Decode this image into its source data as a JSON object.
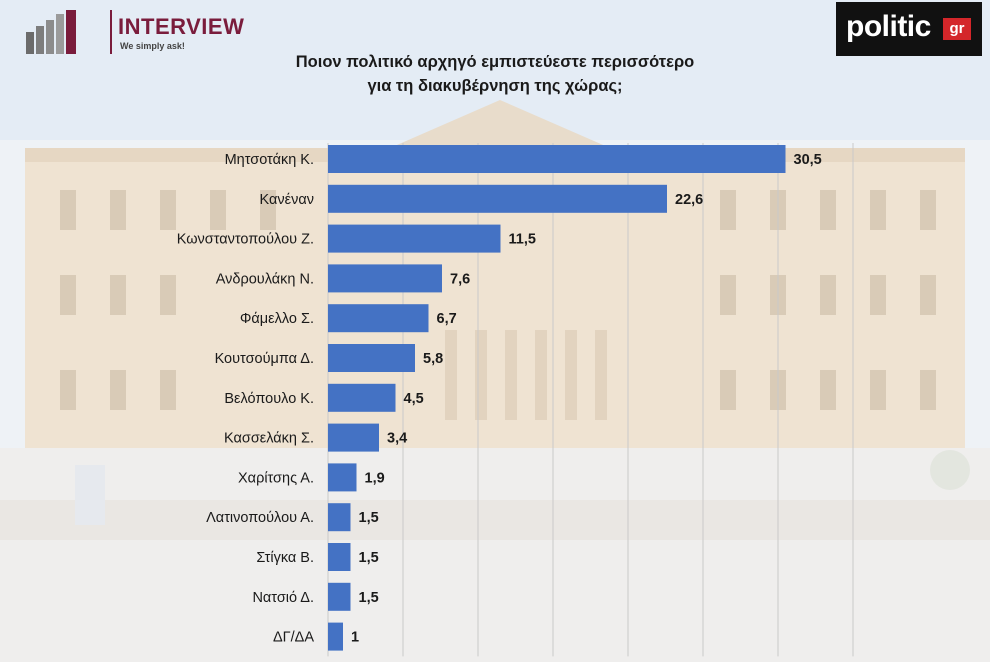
{
  "header": {
    "brand_left": "INTERVIEW",
    "brand_left_slogan": "We simply ask!",
    "brand_right": "politic",
    "brand_right_suffix": "gr"
  },
  "colors": {
    "bar": "#4472c4",
    "brand_left": "#7a1c3c",
    "brand_right_accent": "#d4262a"
  },
  "chart_data": {
    "type": "bar",
    "orientation": "horizontal",
    "title_lines": [
      "Ποιον πολιτικό αρχηγό εμπιστεύεστε περισσότερο",
      "για τη διακυβέρνηση της χώρας;"
    ],
    "categories": [
      "Μητσοτάκη Κ.",
      "Κανέναν",
      "Κωνσταντοπούλου Ζ.",
      "Ανδρουλάκη Ν.",
      "Φάμελλο Σ.",
      "Κουτσούμπα Δ.",
      "Βελόπουλο Κ.",
      "Κασσελάκη Σ.",
      "Χαρίτσης Α.",
      "Λατινοπούλου Α.",
      "Στίγκα Β.",
      "Νατσιό Δ.",
      "ΔΓ/ΔΑ"
    ],
    "values": [
      30.5,
      22.6,
      11.5,
      7.6,
      6.7,
      5.8,
      4.5,
      3.4,
      1.9,
      1.5,
      1.5,
      1.5,
      1
    ],
    "value_labels": [
      "30,5",
      "22,6",
      "11,5",
      "7,6",
      "6,7",
      "5,8",
      "4,5",
      "3,4",
      "1,9",
      "1,5",
      "1,5",
      "1,5",
      "1"
    ],
    "xlim": [
      0,
      35
    ],
    "grid": true,
    "legend": false
  }
}
